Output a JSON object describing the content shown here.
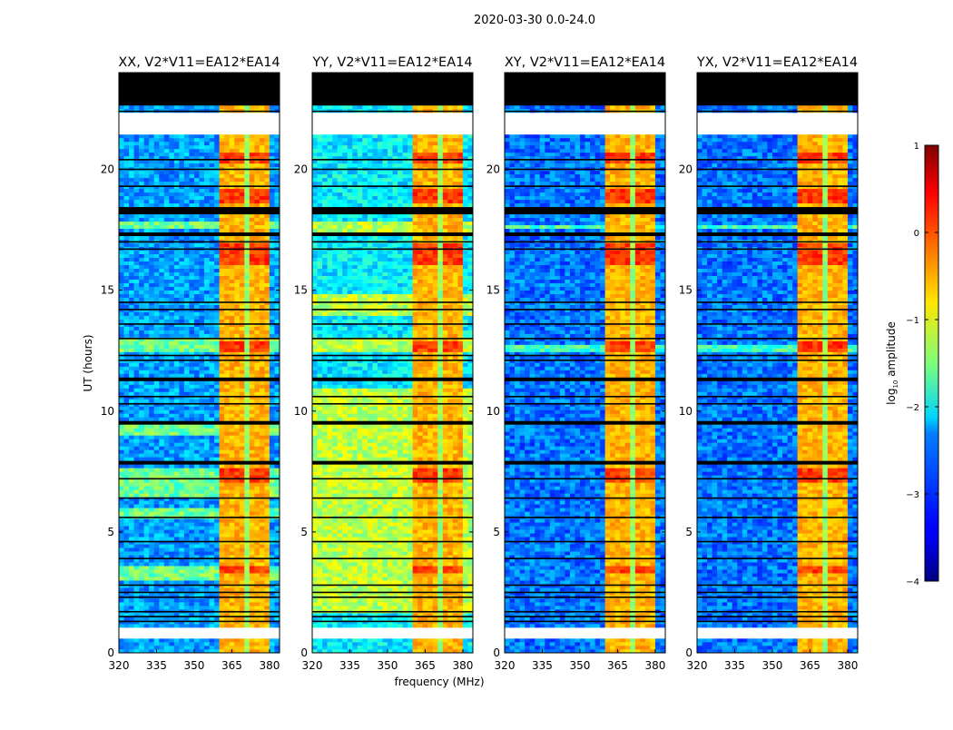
{
  "figure": {
    "suptitle": "2020-03-30 0.0-24.0",
    "xlabel": "frequency (MHz)",
    "ylabel": "UT (hours)",
    "colorbar_label": "log",
    "colorbar_label_sub": "10",
    "colorbar_label_tail": " amplitude"
  },
  "chart_data": {
    "type": "heatmap",
    "colormap": "jet",
    "panels": [
      {
        "title": "XX, V2*V11=EA12*EA14",
        "baseline": -2.6,
        "green_bands": [
          [
            12.5,
            13.0
          ],
          [
            9.0,
            9.5
          ],
          [
            6.5,
            7.6
          ],
          [
            17.5,
            17.8
          ],
          [
            5.6,
            6.0
          ],
          [
            3.0,
            3.6
          ]
        ]
      },
      {
        "title": "YY, V2*V11=EA12*EA14",
        "baseline": -2.2,
        "green_bands": [
          [
            1.7,
            11.0
          ],
          [
            12.5,
            13.0
          ],
          [
            17.3,
            17.8
          ],
          [
            14.0,
            14.8
          ]
        ]
      },
      {
        "title": "XY, V2*V11=EA12*EA14",
        "baseline": -2.8,
        "green_bands": [
          [
            12.5,
            12.8
          ],
          [
            17.5,
            17.7
          ]
        ]
      },
      {
        "title": "YX, V2*V11=EA12*EA14",
        "baseline": -2.8,
        "green_bands": [
          [
            12.5,
            12.8
          ],
          [
            17.5,
            17.7
          ]
        ]
      }
    ],
    "x_range": [
      320,
      384
    ],
    "y_range": [
      0,
      24
    ],
    "x_ticks": [
      320,
      335,
      350,
      365,
      380
    ],
    "y_ticks": [
      0,
      5,
      10,
      15,
      20
    ],
    "rfi_band_mhz": [
      360.5,
      380
    ],
    "rfi_gaps_mhz": [
      366,
      371,
      376
    ],
    "rfi_level": -0.5,
    "hot_hours": [
      [
        16.0,
        17.0
      ],
      [
        18.6,
        19.2
      ],
      [
        12.5,
        12.9
      ],
      [
        7.0,
        7.6
      ],
      [
        20.2,
        20.7
      ],
      [
        3.3,
        3.6
      ]
    ],
    "no_data_hours": [
      [
        0.6,
        1.1
      ],
      [
        21.5,
        22.3
      ],
      [
        14.95,
        15.05
      ]
    ],
    "flagged_hours": [
      [
        22.6,
        24.0
      ],
      [
        18.1,
        18.5
      ],
      [
        17.2,
        17.35
      ],
      [
        11.3,
        11.45
      ],
      [
        9.45,
        9.6
      ],
      [
        7.8,
        8.0
      ]
    ],
    "flagged_lines_hours": [
      1.3,
      1.5,
      1.7,
      2.3,
      2.5,
      2.8,
      3.9,
      4.6,
      5.6,
      6.4,
      7.2,
      10.3,
      10.6,
      12.1,
      12.3,
      13.0,
      13.6,
      14.2,
      14.5,
      16.7,
      17.0,
      19.3,
      20.0,
      20.4,
      22.4
    ],
    "colorbar": {
      "range": [
        -4,
        1
      ],
      "ticks": [
        -4,
        -3,
        -2,
        -1,
        0,
        1
      ]
    }
  }
}
